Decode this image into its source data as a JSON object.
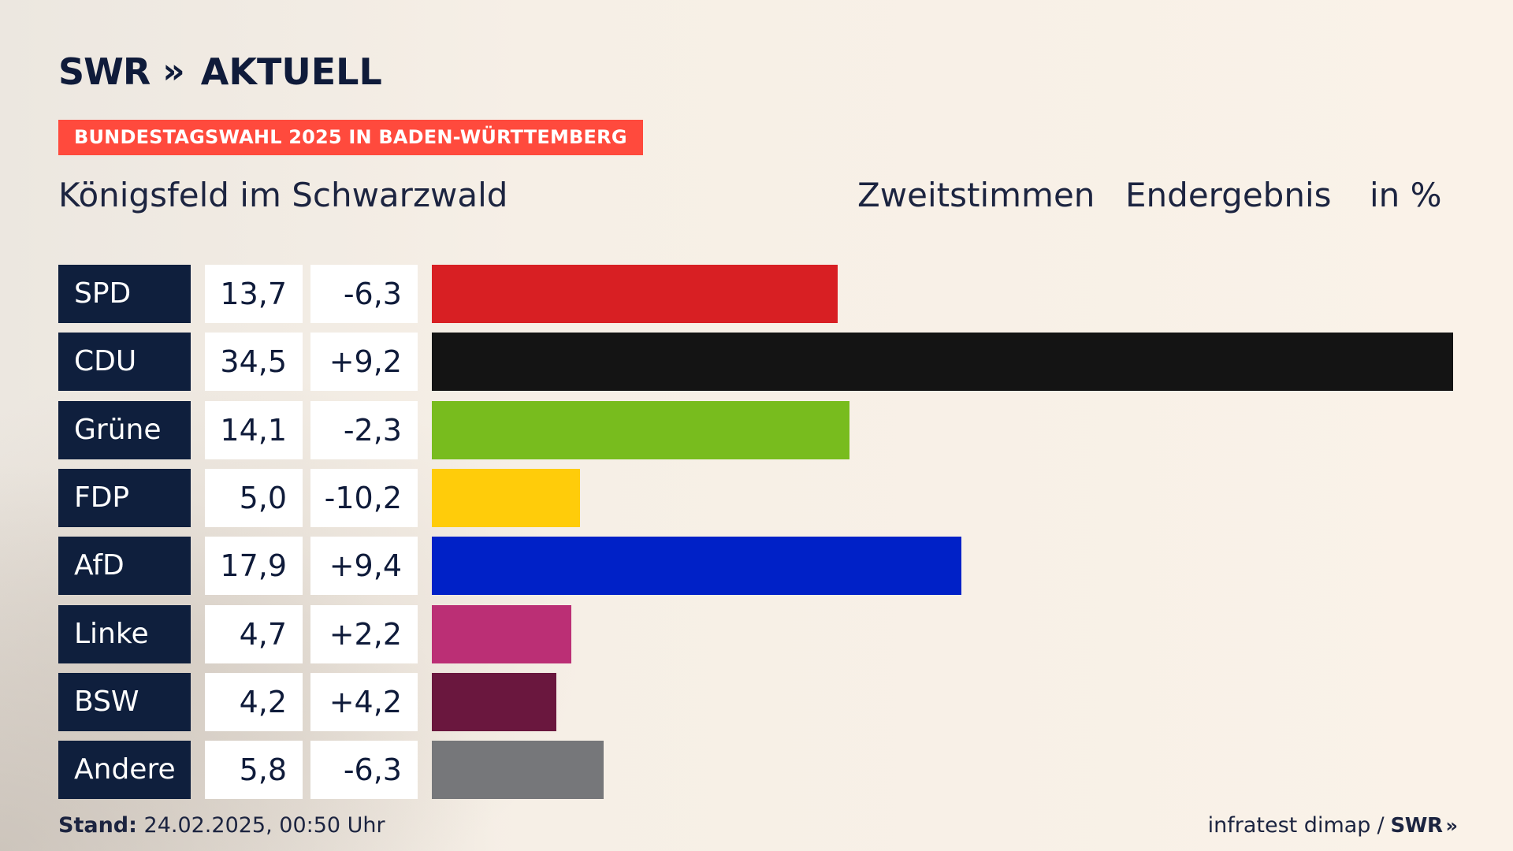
{
  "brand": {
    "name": "SWR",
    "chevrons": "»",
    "sub": "AKTUELL"
  },
  "banner": "BUNDESTAGSWAHL 2025 IN BADEN-WÜRTTEMBERG",
  "region": "Königsfeld im Schwarzwald",
  "meta": {
    "vote_type": "Zweitstimmen",
    "status": "Endergebnis",
    "unit": "in %"
  },
  "chart_data": {
    "type": "bar",
    "orientation": "horizontal",
    "categories": [
      "SPD",
      "CDU",
      "Grüne",
      "FDP",
      "AfD",
      "Linke",
      "BSW",
      "Andere"
    ],
    "values": [
      13.7,
      34.5,
      14.1,
      5.0,
      17.9,
      4.7,
      4.2,
      5.8
    ],
    "value_labels": [
      "13,7",
      "34,5",
      "14,1",
      "5,0",
      "17,9",
      "4,7",
      "4,2",
      "5,8"
    ],
    "diffs": [
      -6.3,
      9.2,
      -2.3,
      -10.2,
      9.4,
      2.2,
      4.2,
      -6.3
    ],
    "diff_labels": [
      "-6,3",
      "+9,2",
      "-2,3",
      "-10,2",
      "+9,4",
      "+2,2",
      "+4,2",
      "-6,3"
    ],
    "colors": [
      "#d81f23",
      "#141414",
      "#78bc1e",
      "#ffcc0a",
      "#0021c7",
      "#bb2f75",
      "#6a173e",
      "#76777a"
    ],
    "xlim": [
      0,
      34.5
    ],
    "grid": false,
    "legend": "none"
  },
  "footer": {
    "stand_label": "Stand:",
    "stand_value": "24.02.2025, 00:50 Uhr",
    "source": "infratest dimap",
    "separator": "/",
    "source_brand": "SWR",
    "source_chevrons": "»"
  }
}
